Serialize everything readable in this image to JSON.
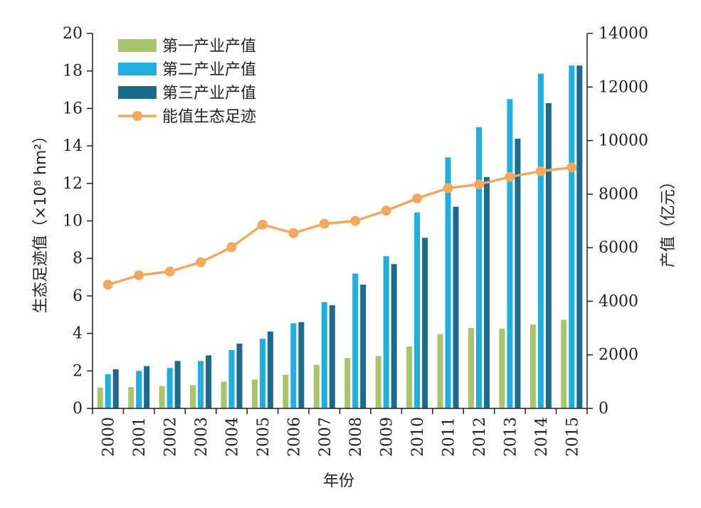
{
  "chart_data": {
    "type": "bar",
    "categories": [
      "2000",
      "2001",
      "2002",
      "2003",
      "2004",
      "2005",
      "2006",
      "2007",
      "2008",
      "2009",
      "2010",
      "2011",
      "2012",
      "2013",
      "2014",
      "2015"
    ],
    "xlabel": "年份",
    "ylabel_left": "生态足迹值（×10⁸ hm²）",
    "ylabel_right": "产值（亿元）",
    "ylim_left": [
      0,
      20
    ],
    "ylim_right": [
      0,
      14000
    ],
    "yticks_left": [
      "0",
      "2",
      "4",
      "6",
      "8",
      "10",
      "12",
      "14",
      "16",
      "18",
      "20"
    ],
    "yticks_right": [
      "0",
      "2000",
      "4000",
      "6000",
      "8000",
      "10000",
      "12000",
      "14000"
    ],
    "legend_position": "top-left",
    "colors": {
      "primary": "#a9c46c",
      "secondary": "#1eaee0",
      "tertiary": "#1c6a8e",
      "footprint": "#f0a95d"
    },
    "series": [
      {
        "name": "第一产业产值",
        "axis": "right",
        "kind": "bar",
        "values": [
          770,
          800,
          830,
          870,
          1000,
          1080,
          1260,
          1620,
          1880,
          1960,
          2310,
          2770,
          3000,
          2980,
          3130,
          3310
        ]
      },
      {
        "name": "第二产业产值",
        "axis": "right",
        "kind": "bar",
        "values": [
          1280,
          1400,
          1510,
          1770,
          2180,
          2600,
          3180,
          3970,
          5030,
          5680,
          7320,
          9370,
          10500,
          11550,
          12500,
          12800
        ]
      },
      {
        "name": "第三产业产值",
        "axis": "right",
        "kind": "bar",
        "values": [
          1460,
          1580,
          1770,
          1980,
          2420,
          2870,
          3220,
          3850,
          4620,
          5390,
          6370,
          7530,
          8640,
          10070,
          11400,
          12800
        ]
      },
      {
        "name": "能值生态足迹",
        "axis": "left",
        "kind": "line",
        "values": [
          6.6,
          7.1,
          7.3,
          7.8,
          8.6,
          9.8,
          9.35,
          9.85,
          10.0,
          10.55,
          11.2,
          11.75,
          11.95,
          12.35,
          12.65,
          12.85
        ]
      }
    ]
  }
}
